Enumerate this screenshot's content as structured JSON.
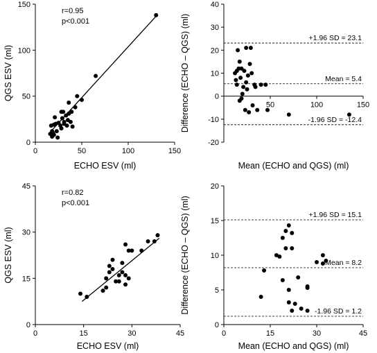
{
  "chart_data": [
    {
      "panel": "top-left",
      "type": "scatter",
      "xlabel": "ECHO ESV (ml)",
      "ylabel": "QGS ESV (ml)",
      "xlim": [
        0,
        150
      ],
      "ylim": [
        0,
        150
      ],
      "xticks": [
        0,
        50,
        100,
        150
      ],
      "yticks": [
        0,
        50,
        100,
        150
      ],
      "annotations": [
        "r=0.95",
        "p<0.001"
      ],
      "regression_line": [
        [
          17,
          12
        ],
        [
          131,
          138
        ]
      ],
      "points": [
        [
          16,
          9
        ],
        [
          17,
          18
        ],
        [
          18,
          12
        ],
        [
          18,
          6
        ],
        [
          19,
          10
        ],
        [
          20,
          8
        ],
        [
          20,
          19
        ],
        [
          21,
          27
        ],
        [
          22,
          20
        ],
        [
          23,
          12
        ],
        [
          24,
          5
        ],
        [
          25,
          21
        ],
        [
          27,
          18
        ],
        [
          28,
          33
        ],
        [
          28,
          15
        ],
        [
          29,
          26
        ],
        [
          30,
          33
        ],
        [
          31,
          22
        ],
        [
          31,
          20
        ],
        [
          33,
          29
        ],
        [
          34,
          18
        ],
        [
          35,
          24
        ],
        [
          36,
          43
        ],
        [
          36,
          31
        ],
        [
          38,
          22
        ],
        [
          39,
          33
        ],
        [
          40,
          17
        ],
        [
          43,
          38
        ],
        [
          45,
          50
        ],
        [
          50,
          46
        ],
        [
          65,
          72
        ],
        [
          130,
          138
        ]
      ]
    },
    {
      "panel": "top-right",
      "type": "scatter",
      "xlabel": "Mean (ECHO and QGS) (ml)",
      "ylabel": "Difference (ECHO – QGS) (ml)",
      "xlim": [
        0,
        150
      ],
      "ylim": [
        -20,
        40
      ],
      "xticks": [
        0,
        50,
        100,
        150
      ],
      "yticks": [
        -20,
        -10,
        0,
        10,
        20,
        30,
        40
      ],
      "reference_lines": [
        {
          "value": 23.1,
          "label": "+1.96 SD = 23.1"
        },
        {
          "value": 5.4,
          "label": "Mean = 5.4"
        },
        {
          "value": -12.4,
          "label": "-1.96 SD = -12.4"
        }
      ],
      "points": [
        [
          12,
          10
        ],
        [
          13,
          7
        ],
        [
          14,
          5
        ],
        [
          14,
          11
        ],
        [
          15,
          20
        ],
        [
          16,
          12
        ],
        [
          17,
          15
        ],
        [
          17,
          -2
        ],
        [
          18,
          8
        ],
        [
          19,
          -1
        ],
        [
          19,
          12
        ],
        [
          20,
          1
        ],
        [
          21,
          4
        ],
        [
          22,
          11
        ],
        [
          23,
          -6
        ],
        [
          24,
          21
        ],
        [
          24,
          6
        ],
        [
          25,
          3
        ],
        [
          26,
          9
        ],
        [
          27,
          -7
        ],
        [
          28,
          14
        ],
        [
          29,
          21
        ],
        [
          30,
          10
        ],
        [
          31,
          -4
        ],
        [
          33,
          5
        ],
        [
          34,
          4
        ],
        [
          36,
          -6
        ],
        [
          40,
          5
        ],
        [
          45,
          5
        ],
        [
          47,
          -6
        ],
        [
          70,
          -8
        ],
        [
          135,
          -8
        ]
      ]
    },
    {
      "panel": "bottom-left",
      "type": "scatter",
      "xlabel": "ECHO ESV (ml)",
      "ylabel": "QGS ESV (ml)",
      "xlim": [
        0,
        45
      ],
      "ylim": [
        0,
        45
      ],
      "xticks": [
        0,
        15,
        30,
        45
      ],
      "yticks": [
        0,
        15,
        30,
        45
      ],
      "annotations": [
        "r=0.82",
        "p<0.001"
      ],
      "regression_line": [
        [
          14.5,
          7.5
        ],
        [
          38.5,
          28
        ]
      ],
      "points": [
        [
          14,
          10
        ],
        [
          16,
          9
        ],
        [
          21,
          11
        ],
        [
          22,
          15
        ],
        [
          22,
          12
        ],
        [
          23,
          17
        ],
        [
          23,
          19
        ],
        [
          24,
          18
        ],
        [
          24,
          21
        ],
        [
          25,
          14
        ],
        [
          26,
          16
        ],
        [
          26,
          14
        ],
        [
          27,
          20
        ],
        [
          27,
          17
        ],
        [
          28,
          26
        ],
        [
          28,
          13
        ],
        [
          28,
          16
        ],
        [
          29,
          15
        ],
        [
          29,
          24
        ],
        [
          30,
          24
        ],
        [
          33,
          24
        ],
        [
          35,
          27
        ],
        [
          37,
          27
        ],
        [
          38,
          29
        ]
      ]
    },
    {
      "panel": "bottom-right",
      "type": "scatter",
      "xlabel": "Mean (ECHO and QGS) (ml)",
      "ylabel": "Difference (ECHO – QGS) (ml)",
      "xlim": [
        0,
        45
      ],
      "ylim": [
        0,
        20
      ],
      "xticks": [
        0,
        15,
        30,
        45
      ],
      "yticks": [
        0,
        5,
        10,
        15,
        20
      ],
      "reference_lines": [
        {
          "value": 15.1,
          "label": "+1.96 SD = 15.1"
        },
        {
          "value": 8.2,
          "label": "Mean = 8.2"
        },
        {
          "value": 1.2,
          "label": "-1.96 SD = 1.2"
        }
      ],
      "points": [
        [
          12,
          4
        ],
        [
          13,
          7.8
        ],
        [
          17,
          10
        ],
        [
          18,
          9.8
        ],
        [
          19,
          6.4
        ],
        [
          19,
          12.5
        ],
        [
          20,
          11
        ],
        [
          20,
          13.5
        ],
        [
          21,
          3.2
        ],
        [
          21,
          14.3
        ],
        [
          21,
          5
        ],
        [
          22,
          13.2
        ],
        [
          22,
          11
        ],
        [
          22,
          2
        ],
        [
          23,
          3
        ],
        [
          24,
          6.8
        ],
        [
          25,
          2.3
        ],
        [
          27,
          5.5
        ],
        [
          27,
          5.3
        ],
        [
          27,
          2
        ],
        [
          30,
          9
        ],
        [
          32,
          8.8
        ],
        [
          32,
          10
        ],
        [
          33,
          9.2
        ]
      ]
    }
  ]
}
